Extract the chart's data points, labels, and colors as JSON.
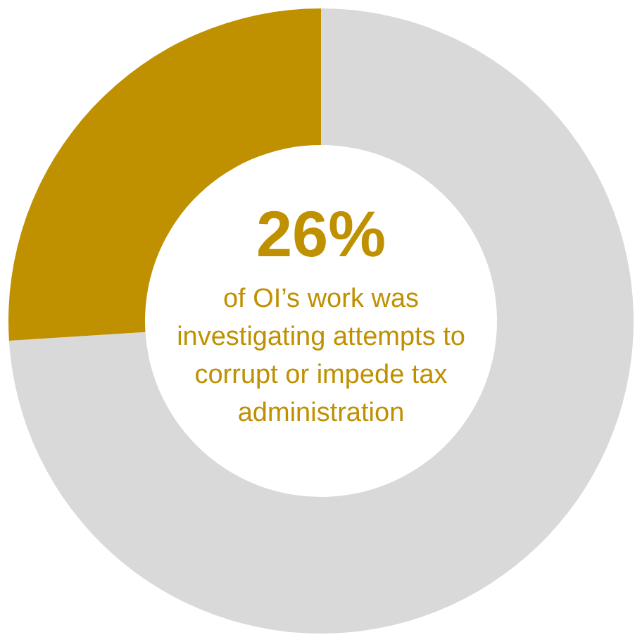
{
  "chart_data": {
    "type": "donut",
    "categories": [
      null,
      null
    ],
    "values": [
      74,
      26
    ],
    "colors": [
      "#d9d9d9",
      "#bf9000"
    ],
    "value_labels": [
      null,
      "26%"
    ],
    "annotations": [
      "of OI’s work was investigating attempts to corrupt or impede tax administration"
    ]
  }
}
